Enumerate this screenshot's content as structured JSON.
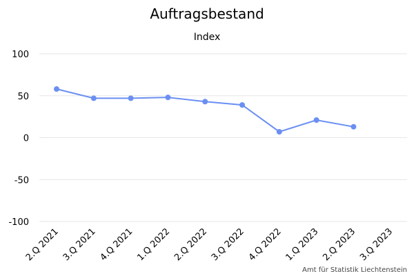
{
  "chart_data": {
    "type": "line",
    "title": "Auftragsbestand",
    "subtitle": "Index",
    "xlabel": "",
    "ylabel": "",
    "categories": [
      "2.Q 2021",
      "3.Q 2021",
      "4.Q 2021",
      "1.Q 2022",
      "2.Q 2022",
      "3.Q 2022",
      "4.Q 2022",
      "1.Q 2023",
      "2.Q 2023",
      "3.Q 2023"
    ],
    "series": [
      {
        "color": "#6b8ff2",
        "values": [
          58,
          47,
          47,
          48,
          43,
          39,
          7,
          21,
          13,
          null
        ]
      }
    ],
    "ylim": [
      -100,
      100
    ],
    "yticks": [
      "100",
      "50",
      "0",
      "-50",
      "-100"
    ],
    "grid": true,
    "legend": "none"
  },
  "credit": "Amt für Statistik Liechtenstein"
}
